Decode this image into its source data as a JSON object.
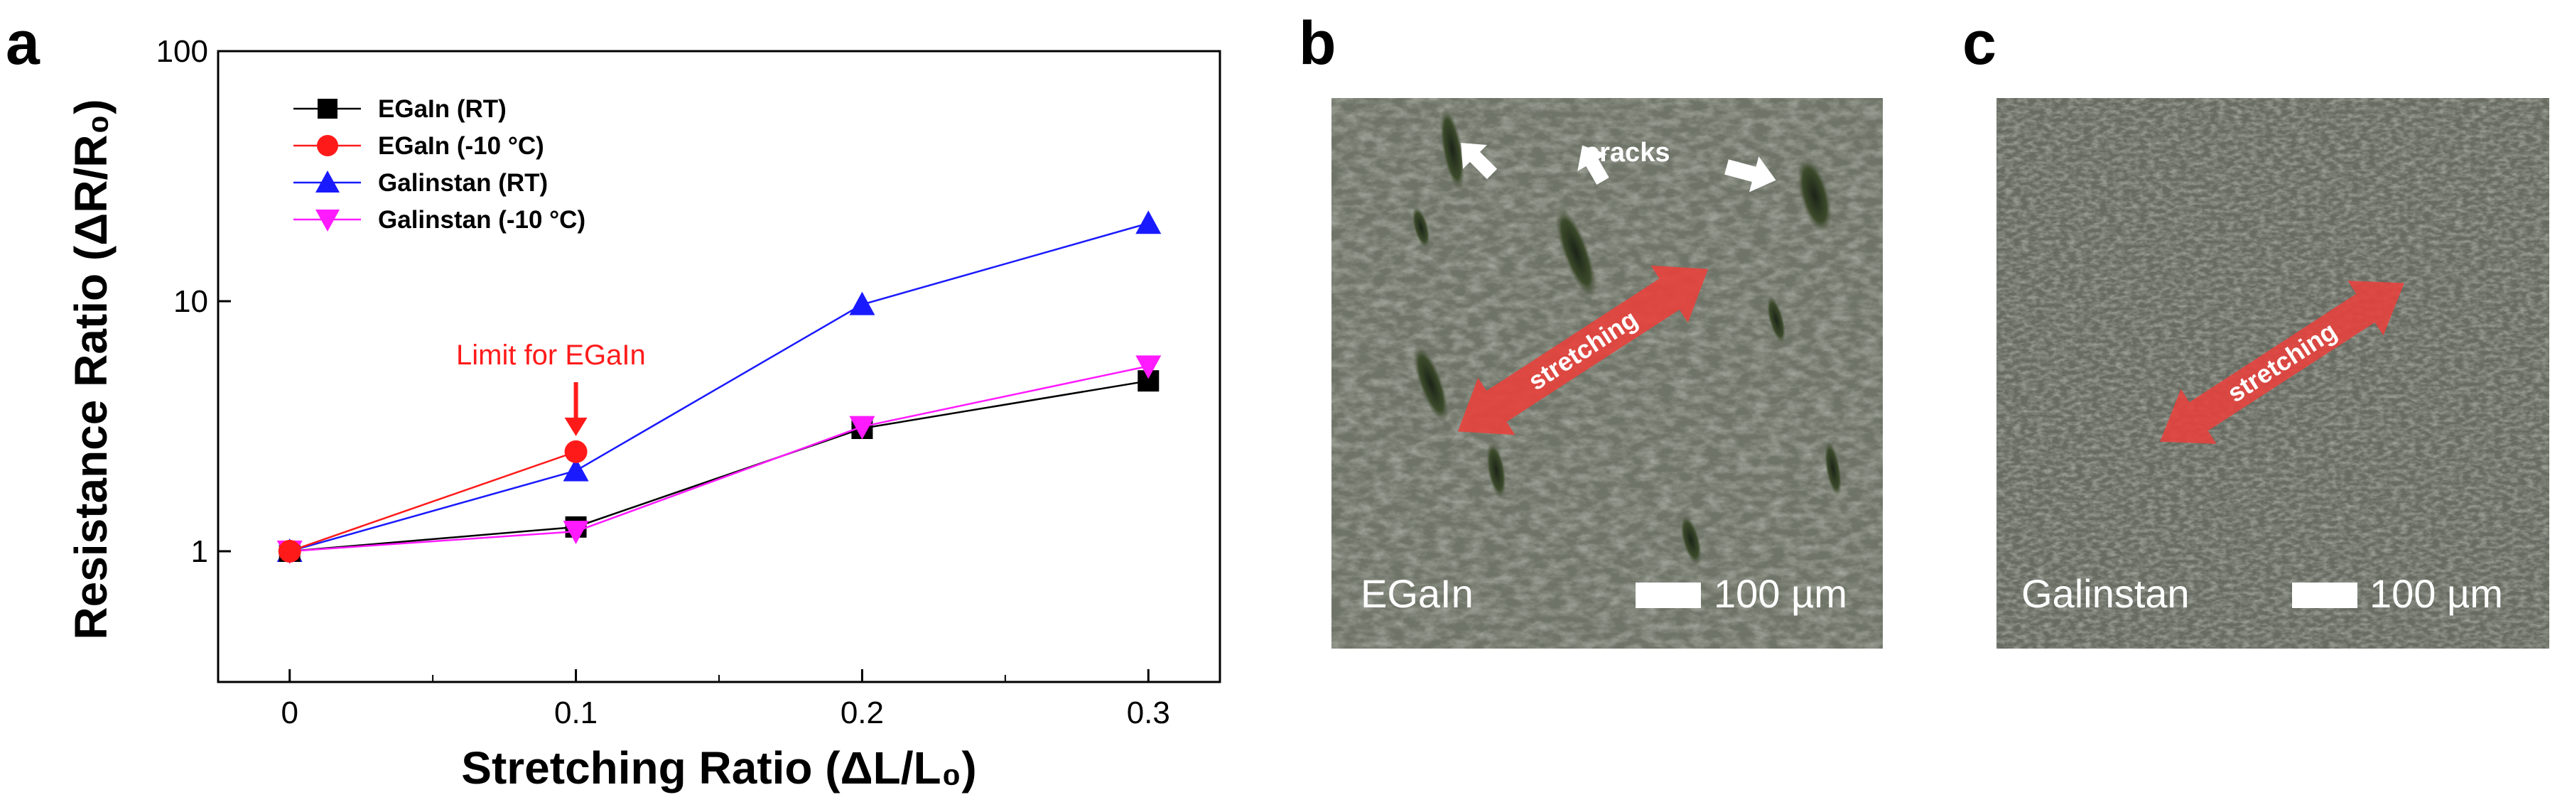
{
  "figure": {
    "panels": {
      "a": "a",
      "b": "b",
      "c": "c"
    },
    "micrograph_b": {
      "material_label": "EGaIn",
      "scale_bar": "100 µm",
      "cracks_label": "cracks",
      "stretch_label": "stretching",
      "colors": {
        "background": "#6f7468",
        "arrow": "#e8413c"
      }
    },
    "micrograph_c": {
      "material_label": "Galinstan",
      "scale_bar": "100 µm",
      "stretch_label": "stretching",
      "colors": {
        "background": "#676b61",
        "arrow": "#e8413c"
      }
    },
    "annotation": {
      "text": "Limit for EGaIn",
      "points_to": {
        "x": 0.1,
        "y": 2.5
      },
      "color": "#ff1a1a"
    }
  },
  "chart_data": {
    "type": "line",
    "title": "",
    "xlabel": "Stretching Ratio (ΔL/L₀)",
    "ylabel": "Resistance Ratio (ΔR/R₀)",
    "x": [
      0,
      0.1,
      0.2,
      0.3
    ],
    "xlim": [
      -0.025,
      0.325
    ],
    "ylim": [
      0.3,
      100
    ],
    "yscale": "log",
    "xticks": [
      "0",
      "0.1",
      "0.2",
      "0.3"
    ],
    "yticks": [
      "1",
      "10",
      "100"
    ],
    "grid": false,
    "legend_position": "top-left",
    "series": [
      {
        "name": "EGaIn (RT)",
        "marker": "square",
        "color": "#000000",
        "x": [
          0,
          0.1,
          0.2,
          0.3
        ],
        "values": [
          1.0,
          1.25,
          3.1,
          4.8
        ]
      },
      {
        "name": "EGaIn (-10 °C)",
        "marker": "circle",
        "color": "#ff1a1a",
        "x": [
          0,
          0.1
        ],
        "values": [
          1.0,
          2.5
        ]
      },
      {
        "name": "Galinstan (RT)",
        "marker": "triangle-up",
        "color": "#1a1aff",
        "x": [
          0,
          0.1,
          0.2,
          0.3
        ],
        "values": [
          1.0,
          2.1,
          9.7,
          20.5
        ]
      },
      {
        "name": "Galinstan (-10 °C)",
        "marker": "triangle-down",
        "color": "#ff1aff",
        "x": [
          0,
          0.1,
          0.2,
          0.3
        ],
        "values": [
          1.0,
          1.2,
          3.15,
          5.5
        ]
      }
    ]
  }
}
